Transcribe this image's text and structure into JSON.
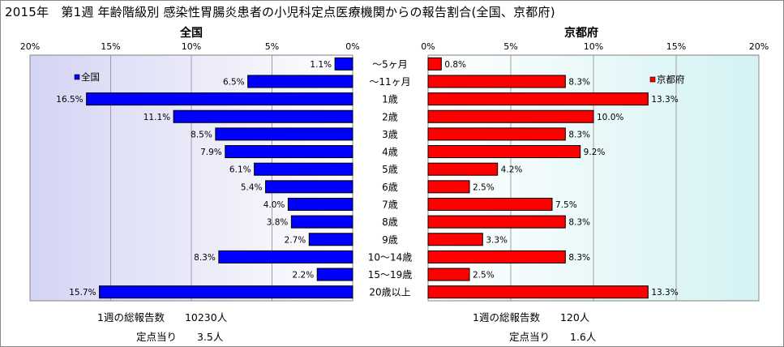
{
  "title": "2015年　第1週 年齢階級別 感染性胃腸炎患者の小児科定点医療機関からの報告割合(全国、京都府)",
  "chart_data": [
    {
      "type": "bar",
      "title": "全国",
      "orientation": "horizontal",
      "direction": "reversed",
      "categories": [
        "～5ヶ月",
        "～11ヶ月",
        "1歳",
        "2歳",
        "3歳",
        "4歳",
        "5歳",
        "6歳",
        "7歳",
        "8歳",
        "9歳",
        "10～14歳",
        "15～19歳",
        "20歳以上"
      ],
      "series": [
        {
          "name": "全国",
          "color": "#0000ff",
          "values": [
            1.1,
            6.5,
            16.5,
            11.1,
            8.5,
            7.9,
            6.1,
            5.4,
            4.0,
            3.8,
            2.7,
            8.3,
            2.2,
            15.7
          ],
          "labels": [
            "1.1%",
            "6.5%",
            "16.5%",
            "11.1%",
            "8.5%",
            "7.9%",
            "6.1%",
            "5.4%",
            "4.0%",
            "3.8%",
            "2.7%",
            "8.3%",
            "2.2%",
            "15.7%"
          ]
        }
      ],
      "xlim": [
        0,
        20
      ],
      "ticks": [
        20,
        15,
        10,
        5,
        0
      ],
      "tick_labels": [
        "20%",
        "15%",
        "10%",
        "5%",
        "0%"
      ],
      "grid": true,
      "legend": "top-left",
      "plot_background": [
        "#d4d4f4",
        "#ffffff"
      ]
    },
    {
      "type": "bar",
      "title": "京都府",
      "orientation": "horizontal",
      "categories": [
        "～5ヶ月",
        "～11ヶ月",
        "1歳",
        "2歳",
        "3歳",
        "4歳",
        "5歳",
        "6歳",
        "7歳",
        "8歳",
        "9歳",
        "10～14歳",
        "15～19歳",
        "20歳以上"
      ],
      "series": [
        {
          "name": "京都府",
          "color": "#ff0000",
          "values": [
            0.8,
            8.3,
            13.3,
            10.0,
            8.3,
            9.2,
            4.2,
            2.5,
            7.5,
            8.3,
            3.3,
            8.3,
            2.5,
            13.3
          ],
          "labels": [
            "0.8%",
            "8.3%",
            "13.3%",
            "10.0%",
            "8.3%",
            "9.2%",
            "4.2%",
            "2.5%",
            "7.5%",
            "8.3%",
            "3.3%",
            "8.3%",
            "2.5%",
            "13.3%"
          ]
        }
      ],
      "xlim": [
        0,
        20
      ],
      "ticks": [
        0,
        5,
        10,
        15,
        20
      ],
      "tick_labels": [
        "0%",
        "5%",
        "10%",
        "15%",
        "20%"
      ],
      "grid": true,
      "legend": "top-right",
      "plot_background": [
        "#ffffff",
        "#d4f2f4"
      ]
    }
  ],
  "footer": {
    "national_total": "1週の総報告数　　10230人",
    "national_per_site": "定点当り　　3.5人",
    "kyoto_total": "1週の総報告数　　120人",
    "kyoto_per_site": "定点当り　　1.6人"
  }
}
